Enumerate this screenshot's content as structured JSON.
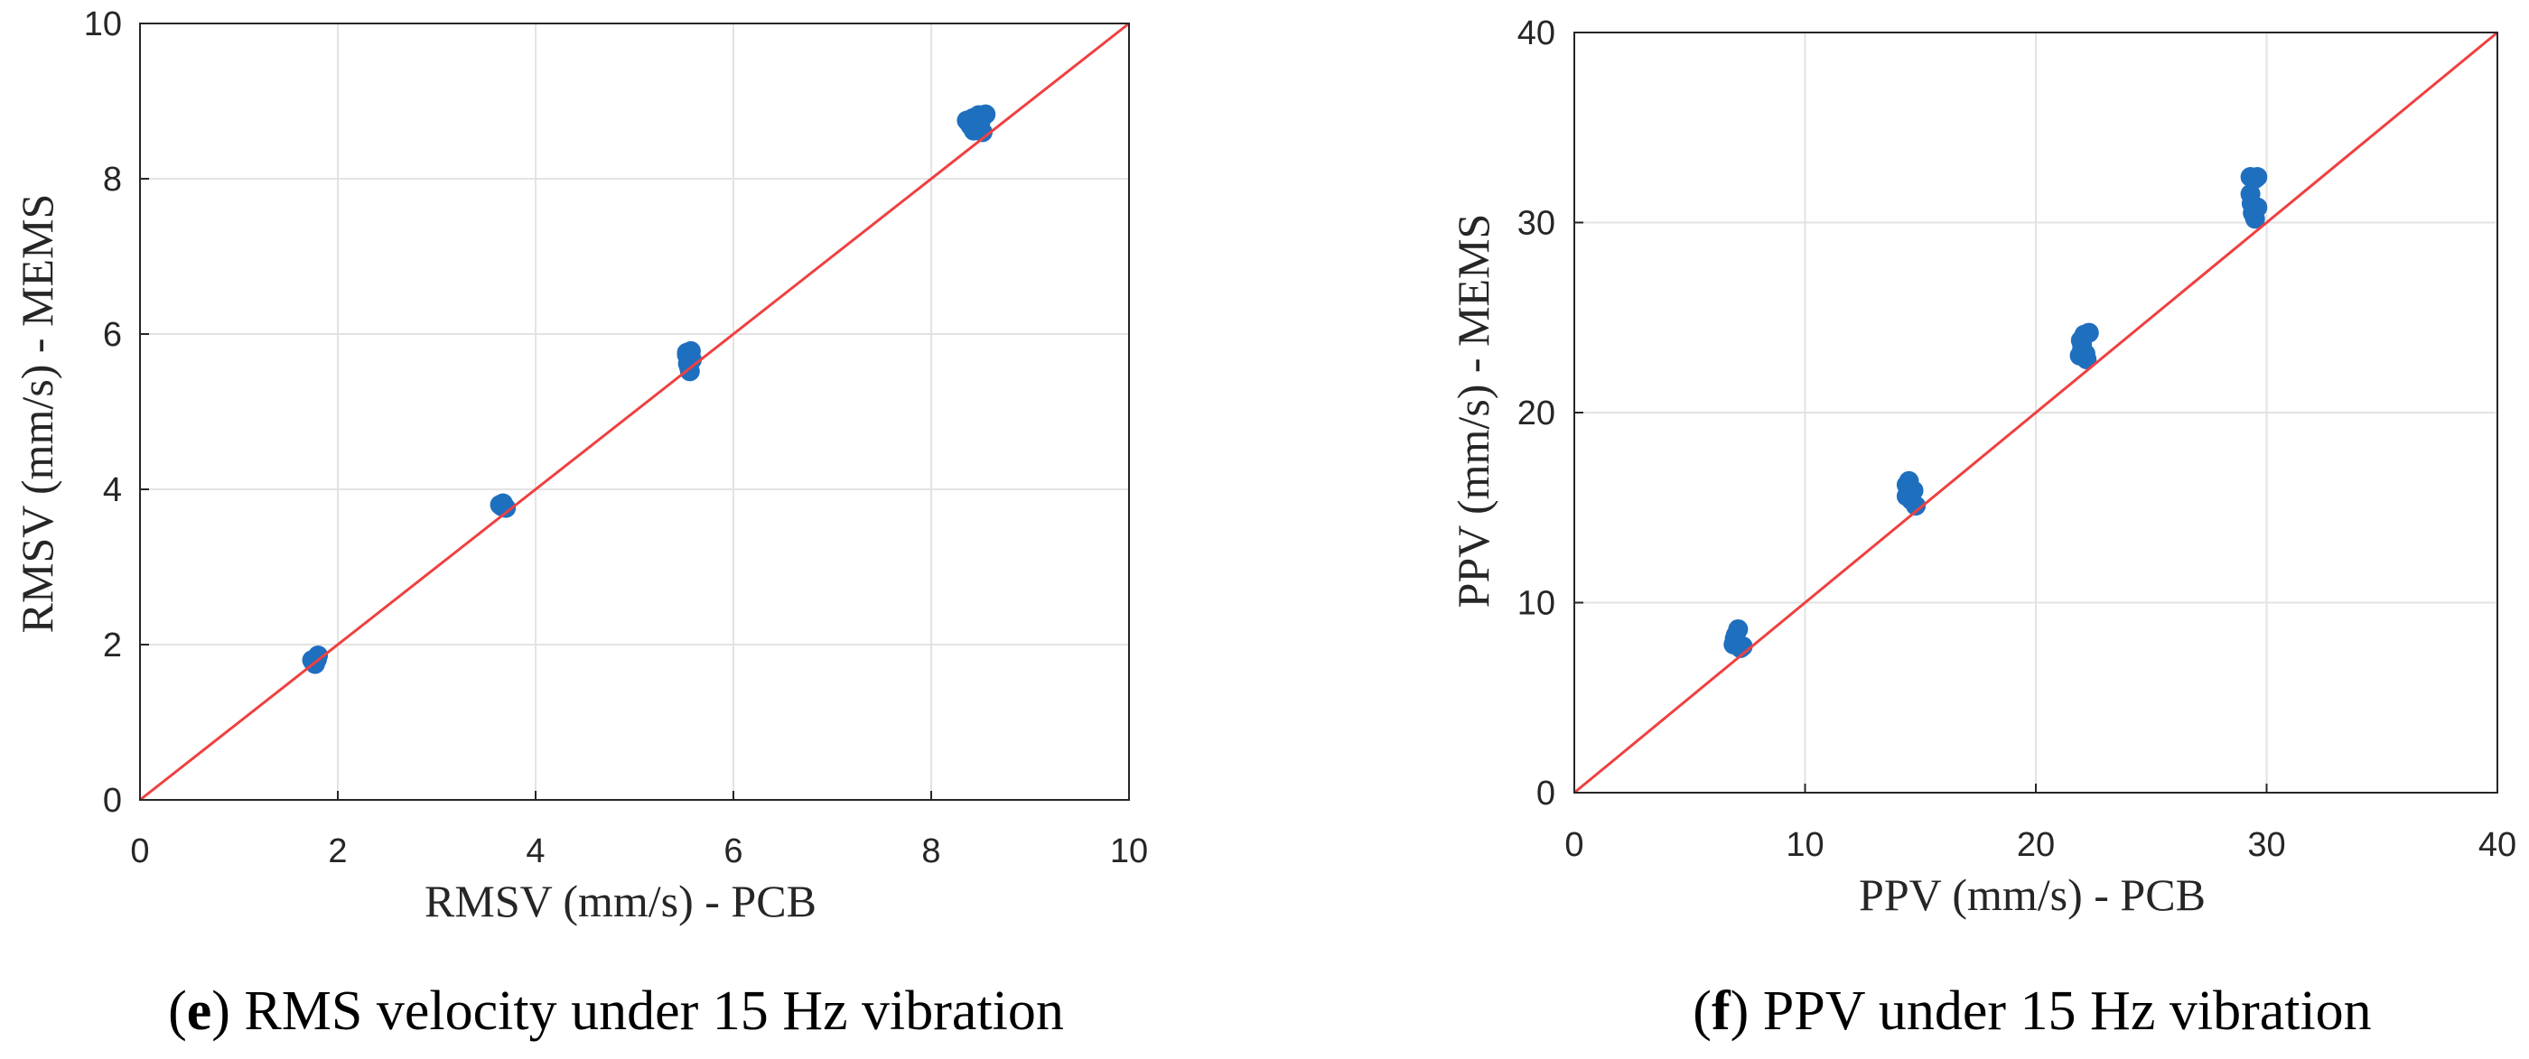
{
  "colors": {
    "point": "#1f6fbf",
    "line": "#f04040",
    "grid": "#e3e3e3",
    "axis": "#262626"
  },
  "chart_data": [
    {
      "type": "scatter",
      "panel": "e",
      "caption_letter": "e",
      "caption_text": "RMS velocity under 15 Hz vibration",
      "xlabel": "RMSV (mm/s) - PCB",
      "ylabel": "RMSV (mm/s) - MEMS",
      "xlim": [
        0,
        10
      ],
      "ylim": [
        0,
        10
      ],
      "xticks": [
        0,
        2,
        4,
        6,
        8,
        10
      ],
      "yticks": [
        0,
        2,
        4,
        6,
        8,
        10
      ],
      "grid": true,
      "reference_line": {
        "name": "y = x",
        "from": [
          0,
          0
        ],
        "to": [
          10,
          10
        ]
      },
      "series": [
        {
          "name": "measurements",
          "points": [
            [
              1.75,
              1.78
            ],
            [
              1.78,
              1.83
            ],
            [
              1.8,
              1.86
            ],
            [
              1.74,
              1.8
            ],
            [
              1.77,
              1.75
            ],
            [
              1.79,
              1.81
            ],
            [
              3.64,
              3.8
            ],
            [
              3.67,
              3.82
            ],
            [
              3.7,
              3.76
            ],
            [
              3.66,
              3.78
            ],
            [
              3.68,
              3.79
            ],
            [
              5.53,
              5.76
            ],
            [
              5.55,
              5.7
            ],
            [
              5.57,
              5.78
            ],
            [
              5.54,
              5.62
            ],
            [
              5.56,
              5.52
            ],
            [
              5.58,
              5.67
            ],
            [
              5.55,
              5.58
            ],
            [
              5.53,
              5.73
            ],
            [
              8.38,
              8.72
            ],
            [
              8.42,
              8.78
            ],
            [
              8.45,
              8.65
            ],
            [
              8.48,
              8.82
            ],
            [
              8.5,
              8.74
            ],
            [
              8.4,
              8.68
            ],
            [
              8.52,
              8.6
            ],
            [
              8.46,
              8.8
            ],
            [
              8.43,
              8.62
            ],
            [
              8.55,
              8.83
            ],
            [
              8.36,
              8.75
            ]
          ]
        }
      ]
    },
    {
      "type": "scatter",
      "panel": "f",
      "caption_letter": "f",
      "caption_text": "PPV under 15 Hz vibration",
      "xlabel": "PPV (mm/s) - PCB",
      "ylabel": "PPV (mm/s) - MEMS",
      "xlim": [
        0,
        40
      ],
      "ylim": [
        0,
        40
      ],
      "xticks": [
        0,
        10,
        20,
        30,
        40
      ],
      "yticks": [
        0,
        10,
        20,
        30,
        40
      ],
      "grid": true,
      "reference_line": {
        "name": "y = x",
        "from": [
          0,
          0
        ],
        "to": [
          40,
          40
        ]
      },
      "series": [
        {
          "name": "measurements",
          "points": [
            [
              6.9,
              7.8
            ],
            [
              7.0,
              8.3
            ],
            [
              7.1,
              8.6
            ],
            [
              7.2,
              7.6
            ],
            [
              7.0,
              8.0
            ],
            [
              6.95,
              8.1
            ],
            [
              7.3,
              7.7
            ],
            [
              14.4,
              16.2
            ],
            [
              14.5,
              15.8
            ],
            [
              14.6,
              15.4
            ],
            [
              14.8,
              15.1
            ],
            [
              14.4,
              15.6
            ],
            [
              14.7,
              15.9
            ],
            [
              14.5,
              16.4
            ],
            [
              21.9,
              23.0
            ],
            [
              22.0,
              23.6
            ],
            [
              22.1,
              24.1
            ],
            [
              22.2,
              22.8
            ],
            [
              22.0,
              23.3
            ],
            [
              21.95,
              23.8
            ],
            [
              22.3,
              24.2
            ],
            [
              22.15,
              23.1
            ],
            [
              29.3,
              32.4
            ],
            [
              29.5,
              32.3
            ],
            [
              29.3,
              31.5
            ],
            [
              29.4,
              30.5
            ],
            [
              29.6,
              30.8
            ],
            [
              29.5,
              30.2
            ],
            [
              29.35,
              31.0
            ],
            [
              29.6,
              32.4
            ]
          ]
        }
      ]
    }
  ]
}
